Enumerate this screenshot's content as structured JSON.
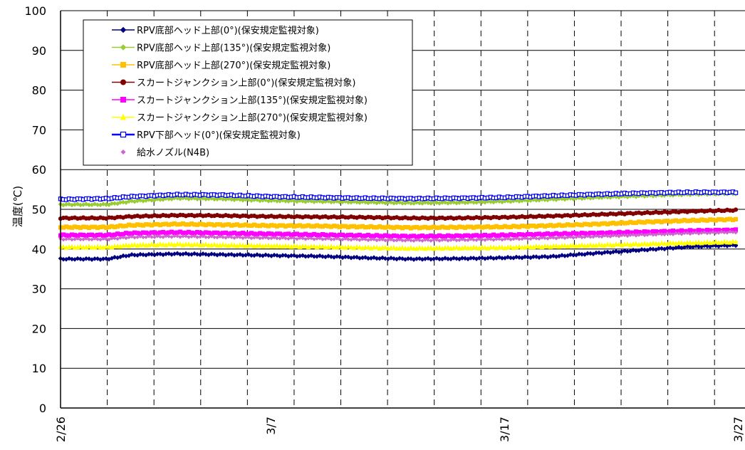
{
  "chart_data": {
    "type": "line",
    "title": "",
    "ylabel": "温度(℃)",
    "xlabel": "",
    "ylim": [
      0,
      100
    ],
    "yticks": [
      0,
      10,
      20,
      30,
      40,
      50,
      60,
      70,
      80,
      90,
      100
    ],
    "xlim": [
      "2/26",
      "3/27"
    ],
    "xticks": [
      "2/26",
      "3/7",
      "3/17",
      "3/27"
    ],
    "grid": {
      "horizontal": true,
      "vertical_dashed": true
    },
    "legend_position": "top-left",
    "series": [
      {
        "name": "RPV底部ヘッド上部(0°)(保安規定監視対象)",
        "color": "#000080",
        "marker": "diamond",
        "x": [
          "2/26",
          "2/28",
          "3/1",
          "3/3",
          "3/5",
          "3/7",
          "3/9",
          "3/11",
          "3/13",
          "3/15",
          "3/17",
          "3/19",
          "3/21",
          "3/23",
          "3/25",
          "3/27"
        ],
        "y": [
          37.5,
          37.5,
          38.5,
          38.8,
          38.6,
          38.4,
          38.2,
          37.8,
          37.5,
          37.6,
          37.8,
          38.1,
          39.0,
          39.8,
          40.6,
          41.0
        ]
      },
      {
        "name": "RPV底部ヘッド上部(135°)(保安規定監視対象)",
        "color": "#99CC33",
        "marker": "diamond",
        "x": [
          "2/26",
          "2/28",
          "3/1",
          "3/3",
          "3/5",
          "3/7",
          "3/9",
          "3/11",
          "3/13",
          "3/15",
          "3/17",
          "3/19",
          "3/21",
          "3/23",
          "3/25",
          "3/27"
        ],
        "y": [
          51.2,
          51.2,
          52.0,
          52.8,
          52.6,
          52.2,
          52.0,
          51.8,
          51.6,
          51.7,
          52.0,
          52.5,
          53.0,
          53.4,
          53.8,
          54.0
        ]
      },
      {
        "name": "RPV底部ヘッド上部(270°)(保安規定監視対象)",
        "color": "#FFC000",
        "marker": "square",
        "x": [
          "2/26",
          "2/28",
          "3/1",
          "3/3",
          "3/5",
          "3/7",
          "3/9",
          "3/11",
          "3/13",
          "3/15",
          "3/17",
          "3/19",
          "3/21",
          "3/23",
          "3/25",
          "3/27"
        ],
        "y": [
          45.5,
          45.5,
          46.0,
          46.3,
          46.1,
          45.9,
          45.8,
          45.6,
          45.4,
          45.5,
          45.6,
          45.9,
          46.3,
          46.8,
          47.2,
          47.5
        ]
      },
      {
        "name": "スカートジャンクション上部(0°)(保安規定監視対象)",
        "color": "#800000",
        "marker": "circle",
        "x": [
          "2/26",
          "2/28",
          "3/1",
          "3/3",
          "3/5",
          "3/7",
          "3/9",
          "3/11",
          "3/13",
          "3/15",
          "3/17",
          "3/19",
          "3/21",
          "3/23",
          "3/25",
          "3/27"
        ],
        "y": [
          47.8,
          47.8,
          48.2,
          48.5,
          48.4,
          48.2,
          48.1,
          48.0,
          47.8,
          47.8,
          48.0,
          48.3,
          48.7,
          49.1,
          49.5,
          49.8
        ]
      },
      {
        "name": "スカートジャンクション上部(135°)(保安規定監視対象)",
        "color": "#FF00FF",
        "marker": "square",
        "x": [
          "2/26",
          "2/28",
          "3/1",
          "3/3",
          "3/5",
          "3/7",
          "3/9",
          "3/11",
          "3/13",
          "3/15",
          "3/17",
          "3/19",
          "3/21",
          "3/23",
          "3/25",
          "3/27"
        ],
        "y": [
          43.5,
          43.5,
          44.0,
          44.2,
          44.0,
          43.8,
          43.6,
          43.4,
          43.2,
          43.3,
          43.5,
          43.8,
          44.0,
          44.3,
          44.6,
          44.8
        ]
      },
      {
        "name": "スカートジャンクション上部(270°)(保安規定監視対象)",
        "color": "#FFFF00",
        "marker": "triangle",
        "x": [
          "2/26",
          "2/28",
          "3/1",
          "3/3",
          "3/5",
          "3/7",
          "3/9",
          "3/11",
          "3/13",
          "3/15",
          "3/17",
          "3/19",
          "3/21",
          "3/23",
          "3/25",
          "3/27"
        ],
        "y": [
          40.5,
          40.5,
          41.0,
          41.2,
          41.0,
          40.8,
          40.6,
          40.4,
          40.2,
          40.3,
          40.4,
          40.7,
          41.0,
          41.3,
          41.6,
          41.8
        ]
      },
      {
        "name": "RPV下部ヘッド(0°)(保安規定監視対象)",
        "color": "#0000FF",
        "marker": "square-open",
        "x": [
          "2/26",
          "2/28",
          "3/1",
          "3/3",
          "3/5",
          "3/7",
          "3/9",
          "3/11",
          "3/13",
          "3/15",
          "3/17",
          "3/19",
          "3/21",
          "3/23",
          "3/25",
          "3/27"
        ],
        "y": [
          52.5,
          52.7,
          53.2,
          53.7,
          53.6,
          53.2,
          53.0,
          52.8,
          52.7,
          52.8,
          53.0,
          53.4,
          53.8,
          54.1,
          54.3,
          54.3
        ]
      },
      {
        "name": "給水ノズル(N4B)",
        "color": "#CC66CC",
        "marker": "diamond-small",
        "x": [
          "2/26",
          "2/28",
          "3/1",
          "3/3",
          "3/5",
          "3/7",
          "3/9",
          "3/11",
          "3/13",
          "3/15",
          "3/17",
          "3/19",
          "3/21",
          "3/23",
          "3/25",
          "3/27"
        ],
        "y": [
          42.5,
          42.5,
          43.0,
          43.2,
          43.0,
          42.8,
          42.6,
          42.4,
          42.2,
          42.3,
          42.5,
          42.8,
          43.2,
          43.6,
          44.0,
          44.3
        ]
      }
    ]
  }
}
